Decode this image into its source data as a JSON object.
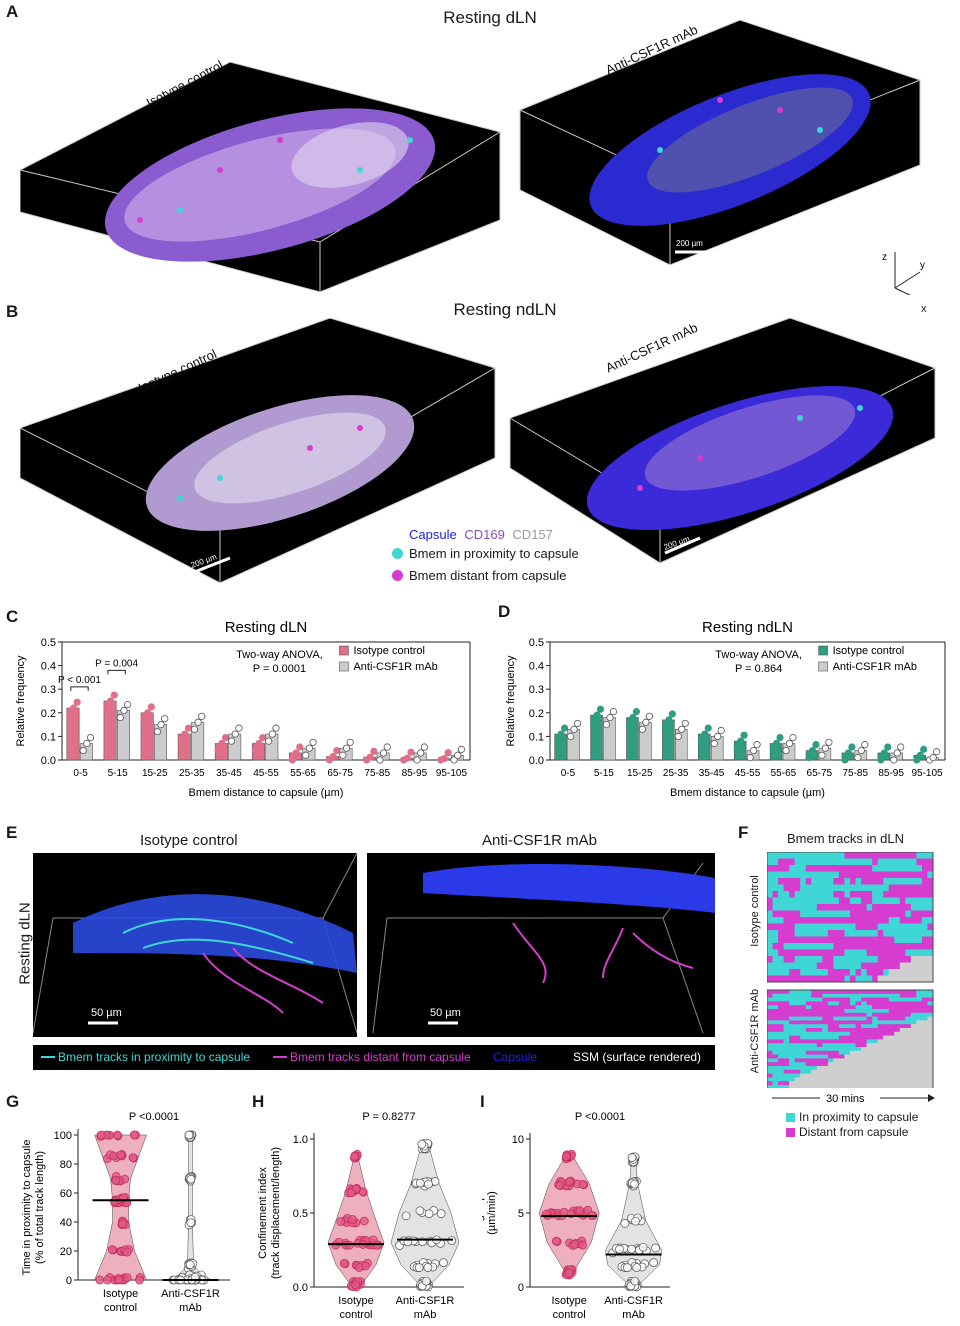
{
  "panel_labels": {
    "A": "A",
    "B": "B",
    "C": "C",
    "D": "D",
    "E": "E",
    "F": "F",
    "G": "G",
    "H": "H",
    "I": "I"
  },
  "panelA": {
    "title": "Resting dLN",
    "left_label": "Isotype control",
    "right_label": "Anti-CSF1R mAb",
    "scale": "200 µm",
    "axes": {
      "z": "z",
      "y": "y",
      "x": "x"
    }
  },
  "panelB": {
    "title": "Resting ndLN",
    "left_label": "Isotype control",
    "right_label": "Anti-CSF1R mAb",
    "scale": "200 µm",
    "legend": {
      "capsule": "Capsule",
      "cd169": "CD169",
      "cd157": "CD157",
      "prox": "Bmem in proximity to capsule",
      "dist": "Bmem distant from capsule"
    }
  },
  "colors": {
    "pink": "#e0708a",
    "grey": "#cccccc",
    "teal": "#2e9e7f",
    "cyan": "#3fd6d6",
    "magenta": "#d63ccf",
    "blue": "#2222dd",
    "purple": "#8a4ac0"
  },
  "chart_data": [
    {
      "type": "bar",
      "id": "C",
      "title": "Resting dLN",
      "xlabel": "Bmem distance to capsule (µm)",
      "ylabel": "Relative frequency",
      "ylim": [
        0,
        0.5
      ],
      "yticks": [
        "0.0",
        "0.1",
        "0.2",
        "0.3",
        "0.4",
        "0.5"
      ],
      "categories": [
        "0-5",
        "5-15",
        "15-25",
        "25-35",
        "35-45",
        "45-55",
        "55-65",
        "65-75",
        "75-85",
        "85-95",
        "95-105"
      ],
      "series": [
        {
          "name": "Isotype control",
          "values": [
            0.22,
            0.25,
            0.2,
            0.11,
            0.07,
            0.07,
            0.03,
            0.015,
            0.012,
            0.008,
            0.006
          ]
        },
        {
          "name": "Anti-CSF1R mAb",
          "values": [
            0.07,
            0.21,
            0.15,
            0.16,
            0.11,
            0.11,
            0.05,
            0.05,
            0.03,
            0.03,
            0.02
          ]
        }
      ],
      "annotations": [
        "P < 0.001",
        "P = 0.004"
      ],
      "stat_text": "Two-way ANOVA,",
      "stat_p": "P = 0.0001"
    },
    {
      "type": "bar",
      "id": "D",
      "title": "Resting ndLN",
      "xlabel": "Bmem distance to capsule (µm)",
      "ylabel": "Relative frequency",
      "ylim": [
        0,
        0.5
      ],
      "yticks": [
        "0.0",
        "0.1",
        "0.2",
        "0.3",
        "0.4",
        "0.5"
      ],
      "categories": [
        "0-5",
        "5-15",
        "15-25",
        "25-35",
        "35-45",
        "45-55",
        "55-65",
        "65-75",
        "75-85",
        "85-95",
        "95-105"
      ],
      "series": [
        {
          "name": "Isotype control",
          "values": [
            0.11,
            0.19,
            0.18,
            0.17,
            0.11,
            0.08,
            0.07,
            0.04,
            0.03,
            0.03,
            0.02
          ]
        },
        {
          "name": "Anti-CSF1R mAb",
          "values": [
            0.13,
            0.18,
            0.16,
            0.13,
            0.1,
            0.04,
            0.07,
            0.05,
            0.04,
            0.03,
            0.01
          ]
        }
      ],
      "stat_text": "Two-way ANOVA,",
      "stat_p": "P = 0.864"
    },
    {
      "type": "scatter",
      "id": "G",
      "ylabel": "Time in proximity to capsule (% of total track length)",
      "ylim": [
        0,
        100
      ],
      "yticks": [
        "0",
        "20",
        "40",
        "60",
        "80",
        "100"
      ],
      "categories": [
        "Isotype control",
        "Anti-CSF1R mAb"
      ],
      "medians": [
        55,
        0
      ],
      "p": "P <0.0001"
    },
    {
      "type": "scatter",
      "id": "H",
      "ylabel": "Confinement index (track displacement/length)",
      "ylim": [
        0,
        1.0
      ],
      "yticks": [
        "0.0",
        "0.5",
        "1.0"
      ],
      "categories": [
        "Isotype control",
        "Anti-CSF1R mAb"
      ],
      "medians": [
        0.29,
        0.32
      ],
      "p": "P = 0.8277"
    },
    {
      "type": "scatter",
      "id": "I",
      "ylabel": "Average speed (µm/min)",
      "ylim": [
        0,
        10
      ],
      "yticks": [
        "0",
        "5",
        "10"
      ],
      "categories": [
        "Isotype control",
        "Anti-CSF1R mAb"
      ],
      "medians": [
        4.8,
        2.2
      ],
      "p": "P <0.0001"
    }
  ],
  "panelE": {
    "left_title": "Isotype control",
    "right_title": "Anti-CSF1R mAb",
    "side_label": "Resting dLN",
    "scale": "50 µm",
    "legend": {
      "prox": "Bmem tracks in proximity to capsule",
      "dist": "Bmem tracks distant from capsule",
      "capsule": "Capsule",
      "ssm": "SSM (surface rendered)"
    }
  },
  "panelF": {
    "title": "Bmem tracks in dLN",
    "top_label": "Isotype control",
    "bottom_label": "Anti-CSF1R mAb",
    "time": "30 mins",
    "legend": {
      "prox": "In proximity to capsule",
      "dist": "Distant from capsule"
    }
  },
  "x_labels": {
    "iso1": "Isotype",
    "iso2": "control",
    "anti1": "Anti-CSF1R",
    "anti2": "mAb"
  }
}
